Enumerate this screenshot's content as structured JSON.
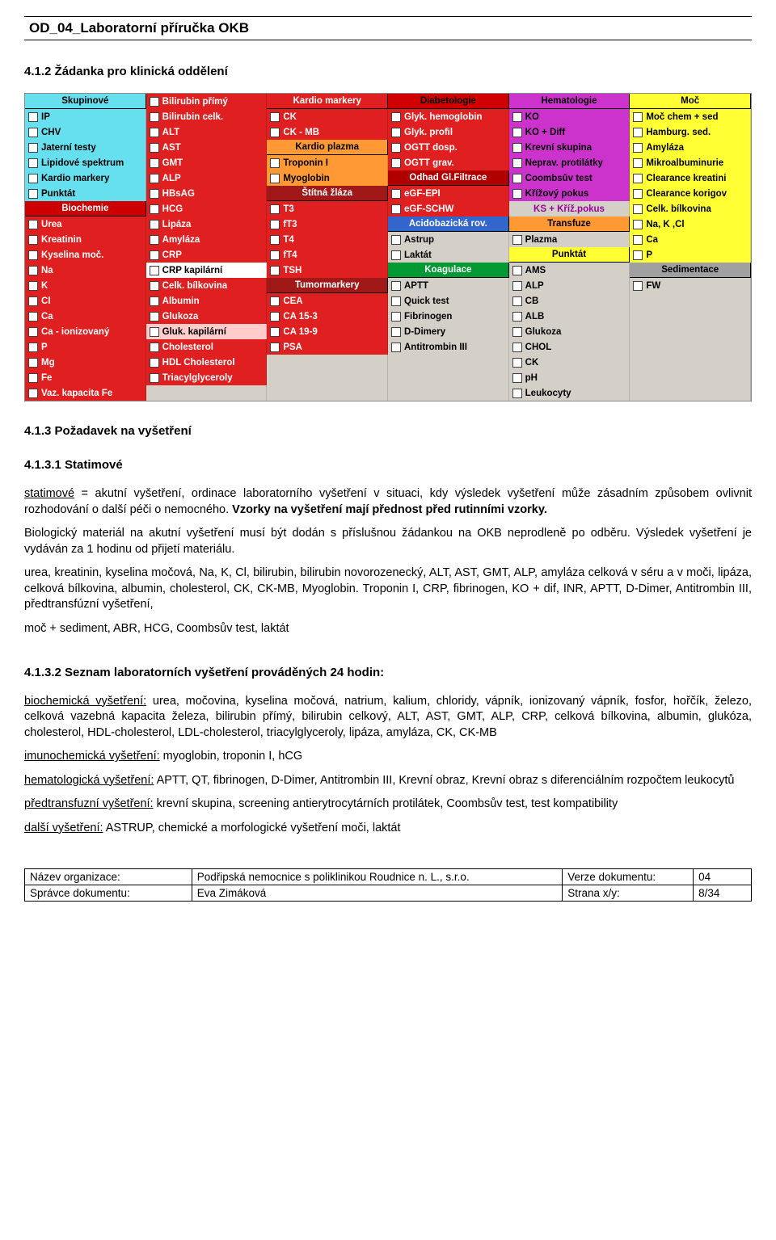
{
  "doc_header": "OD_04_Laboratorní příručka OKB",
  "sec1": "4.1.2  Žádanka pro klinická oddělení",
  "sec2": "4.1.3  Požadavek na vyšetření",
  "sec3": "4.1.3.1  Statimové",
  "sec4": "4.1.3.2  Seznam laboratorních vyšetření prováděných 24 hodin:",
  "panel": {
    "colors": {
      "skupinove": "#66e0ee",
      "biochemie": "#cc0000",
      "red_item": "#e02020",
      "kardio_markery": "#e02020",
      "kardio_plazma": "#ff9933",
      "odhad": "#b00000",
      "stitna": "#a01818",
      "tumor": "#a01818",
      "diabetologie": "#d00000",
      "acidobaz": "#3366cc",
      "koagulace": "#009933",
      "hematologie": "#cc33cc",
      "transfuze": "#ff9933",
      "punktat_y": "#ffff33",
      "moc": "#ffff33",
      "sedimentace": "#a0a0a0",
      "pink": "#ffcccc",
      "white": "#ffffff",
      "gray_txt": "#606060",
      "panel_bg": "#d4d0c8"
    },
    "col1": [
      {
        "type": "h",
        "text": "Skupinové",
        "bg": "skupinove",
        "fg": "#000"
      },
      {
        "type": "c",
        "text": "IP",
        "bg": "skupinove"
      },
      {
        "type": "c",
        "text": "CHV",
        "bg": "skupinove"
      },
      {
        "type": "c",
        "text": "Jaterní testy",
        "bg": "skupinove"
      },
      {
        "type": "c",
        "text": "Lipidové spektrum",
        "bg": "skupinove"
      },
      {
        "type": "c",
        "text": "Kardio markery",
        "bg": "skupinove"
      },
      {
        "type": "c",
        "text": "Punktát",
        "bg": "skupinove"
      },
      {
        "type": "h",
        "text": "Biochemie",
        "bg": "biochemie",
        "fg": "#fff"
      },
      {
        "type": "c",
        "text": "Urea",
        "bg": "red_item",
        "fg": "#fff"
      },
      {
        "type": "c",
        "text": "Kreatinin",
        "bg": "red_item",
        "fg": "#fff"
      },
      {
        "type": "c",
        "text": "Kyselina moč.",
        "bg": "red_item",
        "fg": "#fff"
      },
      {
        "type": "c",
        "text": "Na",
        "bg": "red_item",
        "fg": "#fff"
      },
      {
        "type": "c",
        "text": "K",
        "bg": "red_item",
        "fg": "#fff"
      },
      {
        "type": "c",
        "text": "Cl",
        "bg": "red_item",
        "fg": "#fff"
      },
      {
        "type": "c",
        "text": "Ca",
        "bg": "red_item",
        "fg": "#fff"
      },
      {
        "type": "c",
        "text": "Ca - ionizovaný",
        "bg": "red_item",
        "fg": "#fff"
      },
      {
        "type": "c",
        "text": "P",
        "bg": "red_item",
        "fg": "#fff"
      },
      {
        "type": "c",
        "text": "Mg",
        "bg": "red_item",
        "fg": "#fff"
      },
      {
        "type": "c",
        "text": "Fe",
        "bg": "red_item",
        "fg": "#fff"
      },
      {
        "type": "c",
        "text": "Vaz. kapacita Fe",
        "bg": "red_item",
        "fg": "#fff"
      }
    ],
    "col2": [
      {
        "type": "c",
        "text": "Bilirubin přímý",
        "bg": "red_item",
        "fg": "#fff"
      },
      {
        "type": "c",
        "text": "Bilirubin celk.",
        "bg": "red_item",
        "fg": "#fff"
      },
      {
        "type": "c",
        "text": "ALT",
        "bg": "red_item",
        "fg": "#fff"
      },
      {
        "type": "c",
        "text": "AST",
        "bg": "red_item",
        "fg": "#fff"
      },
      {
        "type": "c",
        "text": "GMT",
        "bg": "red_item",
        "fg": "#fff"
      },
      {
        "type": "c",
        "text": "ALP",
        "bg": "red_item",
        "fg": "#fff"
      },
      {
        "type": "c",
        "text": "HBsAG",
        "bg": "red_item",
        "fg": "#fff"
      },
      {
        "type": "c",
        "text": "HCG",
        "bg": "red_item",
        "fg": "#fff"
      },
      {
        "type": "c",
        "text": "Lipáza",
        "bg": "red_item",
        "fg": "#fff"
      },
      {
        "type": "c",
        "text": "Amyláza",
        "bg": "red_item",
        "fg": "#fff"
      },
      {
        "type": "c",
        "text": "CRP",
        "bg": "red_item",
        "fg": "#fff"
      },
      {
        "type": "c",
        "text": "CRP kapilární",
        "bg": "white",
        "fg": "#000"
      },
      {
        "type": "c",
        "text": "Celk. bílkovina",
        "bg": "red_item",
        "fg": "#fff"
      },
      {
        "type": "c",
        "text": "Albumin",
        "bg": "red_item",
        "fg": "#fff"
      },
      {
        "type": "c",
        "text": "Glukoza",
        "bg": "red_item",
        "fg": "#fff"
      },
      {
        "type": "c",
        "text": "Gluk. kapilární",
        "bg": "pink",
        "fg": "#000"
      },
      {
        "type": "c",
        "text": "Cholesterol",
        "bg": "red_item",
        "fg": "#fff"
      },
      {
        "type": "c",
        "text": "HDL Cholesterol",
        "bg": "red_item",
        "fg": "#fff"
      },
      {
        "type": "c",
        "text": "Triacylglyceroly",
        "bg": "red_item",
        "fg": "#fff"
      },
      {
        "type": "sp"
      }
    ],
    "col3": [
      {
        "type": "h",
        "text": "Kardio markery",
        "bg": "red_item",
        "fg": "#fff"
      },
      {
        "type": "c",
        "text": "CK",
        "bg": "red_item",
        "fg": "#fff"
      },
      {
        "type": "c",
        "text": "CK - MB",
        "bg": "red_item",
        "fg": "#fff"
      },
      {
        "type": "h",
        "text": "Kardio plazma",
        "bg": "kardio_plazma",
        "fg": "#000"
      },
      {
        "type": "c",
        "text": "Troponin I",
        "bg": "kardio_plazma",
        "fg": "#000"
      },
      {
        "type": "c",
        "text": "Myoglobin",
        "bg": "kardio_plazma",
        "fg": "#000"
      },
      {
        "type": "h",
        "text": "Štítná žláza",
        "bg": "stitna",
        "fg": "#fff"
      },
      {
        "type": "c",
        "text": "T3",
        "bg": "red_item",
        "fg": "#fff"
      },
      {
        "type": "c",
        "text": "fT3",
        "bg": "red_item",
        "fg": "#fff"
      },
      {
        "type": "c",
        "text": "T4",
        "bg": "red_item",
        "fg": "#fff"
      },
      {
        "type": "c",
        "text": "fT4",
        "bg": "red_item",
        "fg": "#fff"
      },
      {
        "type": "c",
        "text": "TSH",
        "bg": "red_item",
        "fg": "#fff"
      },
      {
        "type": "h",
        "text": "Tumormarkery",
        "bg": "tumor",
        "fg": "#fff"
      },
      {
        "type": "c",
        "text": "CEA",
        "bg": "red_item",
        "fg": "#fff"
      },
      {
        "type": "c",
        "text": "CA 15-3",
        "bg": "red_item",
        "fg": "#fff"
      },
      {
        "type": "c",
        "text": "CA 19-9",
        "bg": "red_item",
        "fg": "#fff"
      },
      {
        "type": "c",
        "text": "PSA",
        "bg": "red_item",
        "fg": "#fff"
      },
      {
        "type": "sp"
      },
      {
        "type": "sp"
      },
      {
        "type": "sp"
      }
    ],
    "col4": [
      {
        "type": "h",
        "text": "Diabetologie",
        "bg": "diabetologie",
        "fg": "#000"
      },
      {
        "type": "c",
        "text": "Glyk. hemoglobin",
        "bg": "red_item",
        "fg": "#fff"
      },
      {
        "type": "c",
        "text": "Glyk. profil",
        "bg": "red_item",
        "fg": "#fff"
      },
      {
        "type": "c",
        "text": "OGTT dosp.",
        "bg": "red_item",
        "fg": "#fff"
      },
      {
        "type": "c",
        "text": "OGTT grav.",
        "bg": "red_item",
        "fg": "#fff"
      },
      {
        "type": "h",
        "text": "Odhad Gl.Filtrace",
        "bg": "odhad",
        "fg": "#fff"
      },
      {
        "type": "c",
        "text": "eGF-EPI",
        "bg": "red_item",
        "fg": "#fff"
      },
      {
        "type": "c",
        "text": "eGF-SCHW",
        "bg": "red_item",
        "fg": "#fff"
      },
      {
        "type": "h",
        "text": "Acidobazická rov.",
        "bg": "acidobaz",
        "fg": "#fff"
      },
      {
        "type": "c",
        "text": "Astrup",
        "bg": "panel_bg",
        "fg": "#000"
      },
      {
        "type": "c",
        "text": "Laktát",
        "bg": "panel_bg",
        "fg": "#000"
      },
      {
        "type": "h",
        "text": "Koagulace",
        "bg": "koagulace",
        "fg": "#fff"
      },
      {
        "type": "c",
        "text": "APTT",
        "bg": "panel_bg",
        "fg": "#000"
      },
      {
        "type": "c",
        "text": "Quick test",
        "bg": "panel_bg",
        "fg": "#000"
      },
      {
        "type": "c",
        "text": "Fibrinogen",
        "bg": "panel_bg",
        "fg": "#000"
      },
      {
        "type": "c",
        "text": "D-Dimery",
        "bg": "panel_bg",
        "fg": "#000"
      },
      {
        "type": "c",
        "text": "Antitrombin III",
        "bg": "panel_bg",
        "fg": "#000"
      },
      {
        "type": "sp"
      },
      {
        "type": "sp"
      },
      {
        "type": "sp"
      }
    ],
    "col5": [
      {
        "type": "h",
        "text": "Hematologie",
        "bg": "hematologie",
        "fg": "#000"
      },
      {
        "type": "c",
        "text": "KO",
        "bg": "hematologie",
        "fg": "#000"
      },
      {
        "type": "c",
        "text": "KO + Diff",
        "bg": "hematologie",
        "fg": "#000"
      },
      {
        "type": "c",
        "text": "Krevní skupina",
        "bg": "hematologie",
        "fg": "#000"
      },
      {
        "type": "c",
        "text": "Neprav. protilátky",
        "bg": "hematologie",
        "fg": "#000"
      },
      {
        "type": "c",
        "text": "Coombsův test",
        "bg": "hematologie",
        "fg": "#000"
      },
      {
        "type": "c",
        "text": "Křížový pokus",
        "bg": "hematologie",
        "fg": "#000"
      },
      {
        "type": "t",
        "text": "KS + Kříž.pokus",
        "bg": "panel_bg",
        "fg": "#990099"
      },
      {
        "type": "h",
        "text": "Transfuze",
        "bg": "transfuze",
        "fg": "#000"
      },
      {
        "type": "c",
        "text": "Plazma",
        "bg": "panel_bg",
        "fg": "#000"
      },
      {
        "type": "h",
        "text": "Punktát",
        "bg": "punktat_y",
        "fg": "#000"
      },
      {
        "type": "c",
        "text": "AMS",
        "bg": "panel_bg",
        "fg": "#000"
      },
      {
        "type": "c",
        "text": "ALP",
        "bg": "panel_bg",
        "fg": "#000"
      },
      {
        "type": "c",
        "text": "CB",
        "bg": "panel_bg",
        "fg": "#000"
      },
      {
        "type": "c",
        "text": "ALB",
        "bg": "panel_bg",
        "fg": "#000"
      },
      {
        "type": "c",
        "text": "Glukoza",
        "bg": "panel_bg",
        "fg": "#000"
      },
      {
        "type": "c",
        "text": "CHOL",
        "bg": "panel_bg",
        "fg": "#000"
      },
      {
        "type": "c",
        "text": "CK",
        "bg": "panel_bg",
        "fg": "#000"
      },
      {
        "type": "c",
        "text": "pH",
        "bg": "panel_bg",
        "fg": "#000"
      },
      {
        "type": "c",
        "text": "Leukocyty",
        "bg": "panel_bg",
        "fg": "#000"
      }
    ],
    "col6": [
      {
        "type": "h",
        "text": "Moč",
        "bg": "moc",
        "fg": "#000"
      },
      {
        "type": "c",
        "text": "Moč chem + sed",
        "bg": "moc",
        "fg": "#000"
      },
      {
        "type": "c",
        "text": "Hamburg. sed.",
        "bg": "moc",
        "fg": "#000"
      },
      {
        "type": "c",
        "text": "Amyláza",
        "bg": "moc",
        "fg": "#000"
      },
      {
        "type": "c",
        "text": "Mikroalbuminurie",
        "bg": "moc",
        "fg": "#000"
      },
      {
        "type": "c",
        "text": "Clearance kreatini",
        "bg": "moc",
        "fg": "#000"
      },
      {
        "type": "c",
        "text": "Clearance korigov",
        "bg": "moc",
        "fg": "#000"
      },
      {
        "type": "c",
        "text": "Celk. bílkovina",
        "bg": "moc",
        "fg": "#000"
      },
      {
        "type": "c",
        "text": "Na, K ,Cl",
        "bg": "moc",
        "fg": "#000"
      },
      {
        "type": "c",
        "text": "Ca",
        "bg": "moc",
        "fg": "#000"
      },
      {
        "type": "c",
        "text": "P",
        "bg": "moc",
        "fg": "#000"
      },
      {
        "type": "h",
        "text": "Sedimentace",
        "bg": "sedimentace",
        "fg": "#000"
      },
      {
        "type": "c",
        "text": "FW",
        "bg": "panel_bg",
        "fg": "#000"
      },
      {
        "type": "sp"
      },
      {
        "type": "sp"
      },
      {
        "type": "sp"
      },
      {
        "type": "sp"
      },
      {
        "type": "sp"
      },
      {
        "type": "sp"
      },
      {
        "type": "sp"
      }
    ]
  },
  "para1a": "statimové",
  "para1b": " = akutní vyšetření, ordinace laboratorního vyšetření v situaci, kdy výsledek vyšetření může zásadním způsobem ovlivnit rozhodování o další péči o nemocného. ",
  "para1c": "Vzorky na vyšetření mají přednost před rutinními vzorky.",
  "para2": "Biologický materiál na akutní vyšetření musí být dodán s příslušnou žádankou na OKB neprodleně po odběru. Výsledek vyšetření je vydáván za 1 hodinu od přijetí materiálu.",
  "para3": "urea, kreatinin, kyselina močová, Na, K, Cl, bilirubin, bilirubin novorozenecký, ALT, AST, GMT, ALP, amyláza celková v séru a v moči, lipáza, celková bílkovina, albumin, cholesterol, CK, CK-MB, Myoglobin. Troponin I, CRP, fibrinogen, KO + dif, INR, APTT, D-Dimer, Antitrombin III, předtransfúzní vyšetření,",
  "para4": "moč + sediment, ABR,  HCG, Coombsův test, laktát",
  "p24_1a": "biochemická vyšetření:",
  "p24_1b": " urea, močovina, kyselina močová, natrium, kalium, chloridy, vápník, ionizovaný vápník, fosfor, hořčík, železo, celková vazebná kapacita železa, bilirubin přímý, bilirubin celkový, ALT, AST, GMT, ALP, CRP, celková bílkovina, albumin, glukóza, cholesterol, HDL-cholesterol, LDL-cholesterol, triacylglyceroly, lipáza, amyláza,  CK, CK-MB",
  "p24_2a": "imunochemická vyšetření:",
  "p24_2b": " myoglobin, troponin I, hCG",
  "p24_3a": "hematologická vyšetření:",
  "p24_3b": " APTT, QT, fibrinogen, D-Dimer, Antitrombin III, Krevní obraz, Krevní obraz s diferenciálním rozpočtem leukocytů",
  "p24_4a": "předtransfuzní vyšetření:",
  "p24_4b": " krevní skupina, screening antierytrocytárních protilátek, Coombsův test, test kompatibility",
  "p24_5a": "další vyšetření:",
  "p24_5b": " ASTRUP, chemické a morfologické vyšetření moči, laktát",
  "footer": {
    "r1c1": "Název organizace:",
    "r1c2": "Podřipská nemocnice s poliklinikou Roudnice n. L., s.r.o.",
    "r1c3": "Verze dokumentu:",
    "r1c4": "04",
    "r2c1": "Správce dokumentu:",
    "r2c2": "Eva Zimáková",
    "r2c3": "Strana x/y:",
    "r2c4": "8/34"
  }
}
